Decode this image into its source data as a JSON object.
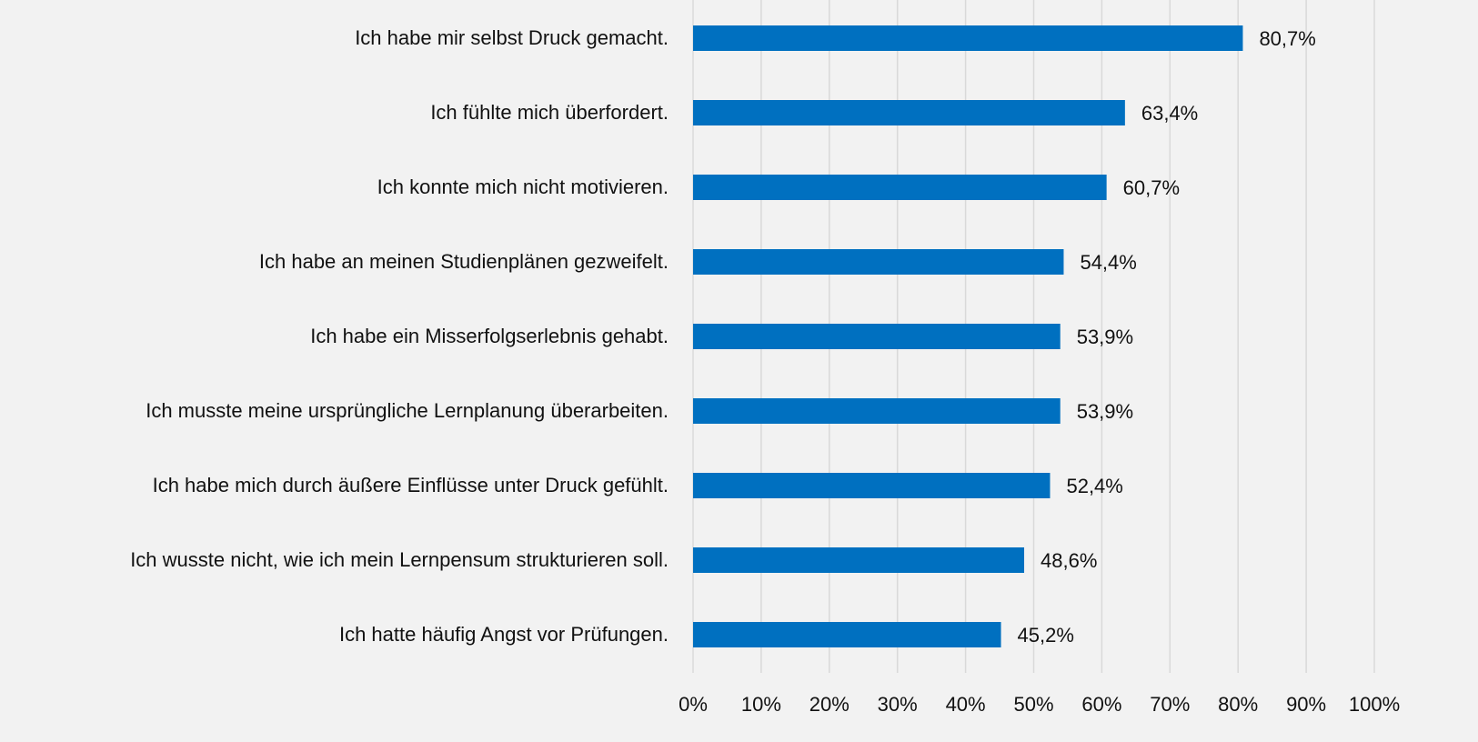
{
  "chart_data": {
    "type": "bar",
    "orientation": "horizontal",
    "categories": [
      "Ich habe mir selbst Druck gemacht.",
      "Ich fühlte mich überfordert.",
      "Ich konnte mich nicht motivieren.",
      "Ich habe an meinen Studienplänen gezweifelt.",
      "Ich habe ein Misserfolgserlebnis gehabt.",
      "Ich musste meine ursprüngliche Lernplanung überarbeiten.",
      "Ich habe mich durch äußere Einflüsse unter Druck gefühlt.",
      "Ich wusste nicht, wie ich mein Lernpensum strukturieren soll.",
      "Ich hatte häufig Angst vor Prüfungen."
    ],
    "values": [
      80.7,
      63.4,
      60.7,
      54.4,
      53.9,
      53.9,
      52.4,
      48.6,
      45.2
    ],
    "value_labels": [
      "80,7%",
      "63,4%",
      "60,7%",
      "54,4%",
      "53,9%",
      "53,9%",
      "52,4%",
      "48,6%",
      "45,2%"
    ],
    "color": "#0070c0",
    "xlim": [
      0,
      100
    ],
    "xticks": [
      {
        "value": 0,
        "label": "0%"
      },
      {
        "value": 10,
        "label": "10%"
      },
      {
        "value": 20,
        "label": "20%"
      },
      {
        "value": 30,
        "label": "30%"
      },
      {
        "value": 40,
        "label": "40%"
      },
      {
        "value": 50,
        "label": "50%"
      },
      {
        "value": 60,
        "label": "60%"
      },
      {
        "value": 70,
        "label": "70%"
      },
      {
        "value": 80,
        "label": "80%"
      },
      {
        "value": 90,
        "label": "90%"
      },
      {
        "value": 100,
        "label": "100%"
      }
    ],
    "grid": true
  }
}
